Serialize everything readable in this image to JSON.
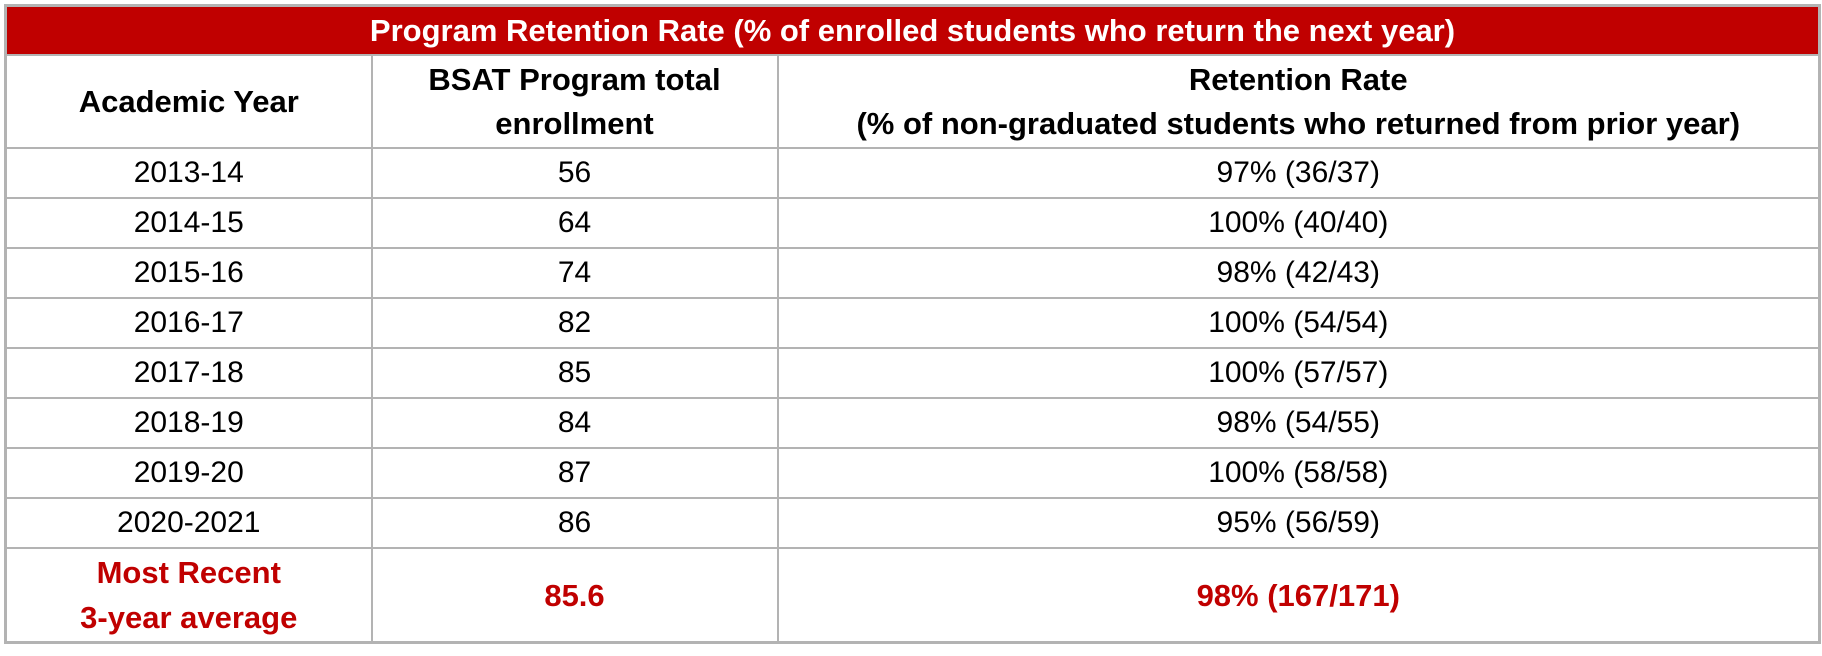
{
  "table": {
    "title": "Program Retention Rate (% of enrolled students who return the next year)",
    "headers": {
      "year": "Academic Year",
      "enrollment_line1": "BSAT Program total",
      "enrollment_line2": "enrollment",
      "retention_line1": "Retention Rate",
      "retention_line2": "(% of non-graduated students who returned from prior year)"
    },
    "rows": [
      {
        "year": "2013-14",
        "enrollment": "56",
        "retention": "97% (36/37)"
      },
      {
        "year": "2014-15",
        "enrollment": "64",
        "retention": "100% (40/40)"
      },
      {
        "year": "2015-16",
        "enrollment": "74",
        "retention": "98% (42/43)"
      },
      {
        "year": "2016-17",
        "enrollment": "82",
        "retention": "100% (54/54)"
      },
      {
        "year": "2017-18",
        "enrollment": "85",
        "retention": "100% (57/57)"
      },
      {
        "year": "2018-19",
        "enrollment": "84",
        "retention": "98% (54/55)"
      },
      {
        "year": "2019-20",
        "enrollment": "87",
        "retention": "100% (58/58)"
      },
      {
        "year": "2020-2021",
        "enrollment": "86",
        "retention": "95% (56/59)"
      }
    ],
    "average": {
      "label_line1": "Most Recent",
      "label_line2": "3-year average",
      "enrollment": "85.6",
      "retention": "98% (167/171)"
    },
    "colors": {
      "title_bg": "#c00000",
      "accent_text": "#c00000",
      "border": "#b3b3b3"
    }
  }
}
